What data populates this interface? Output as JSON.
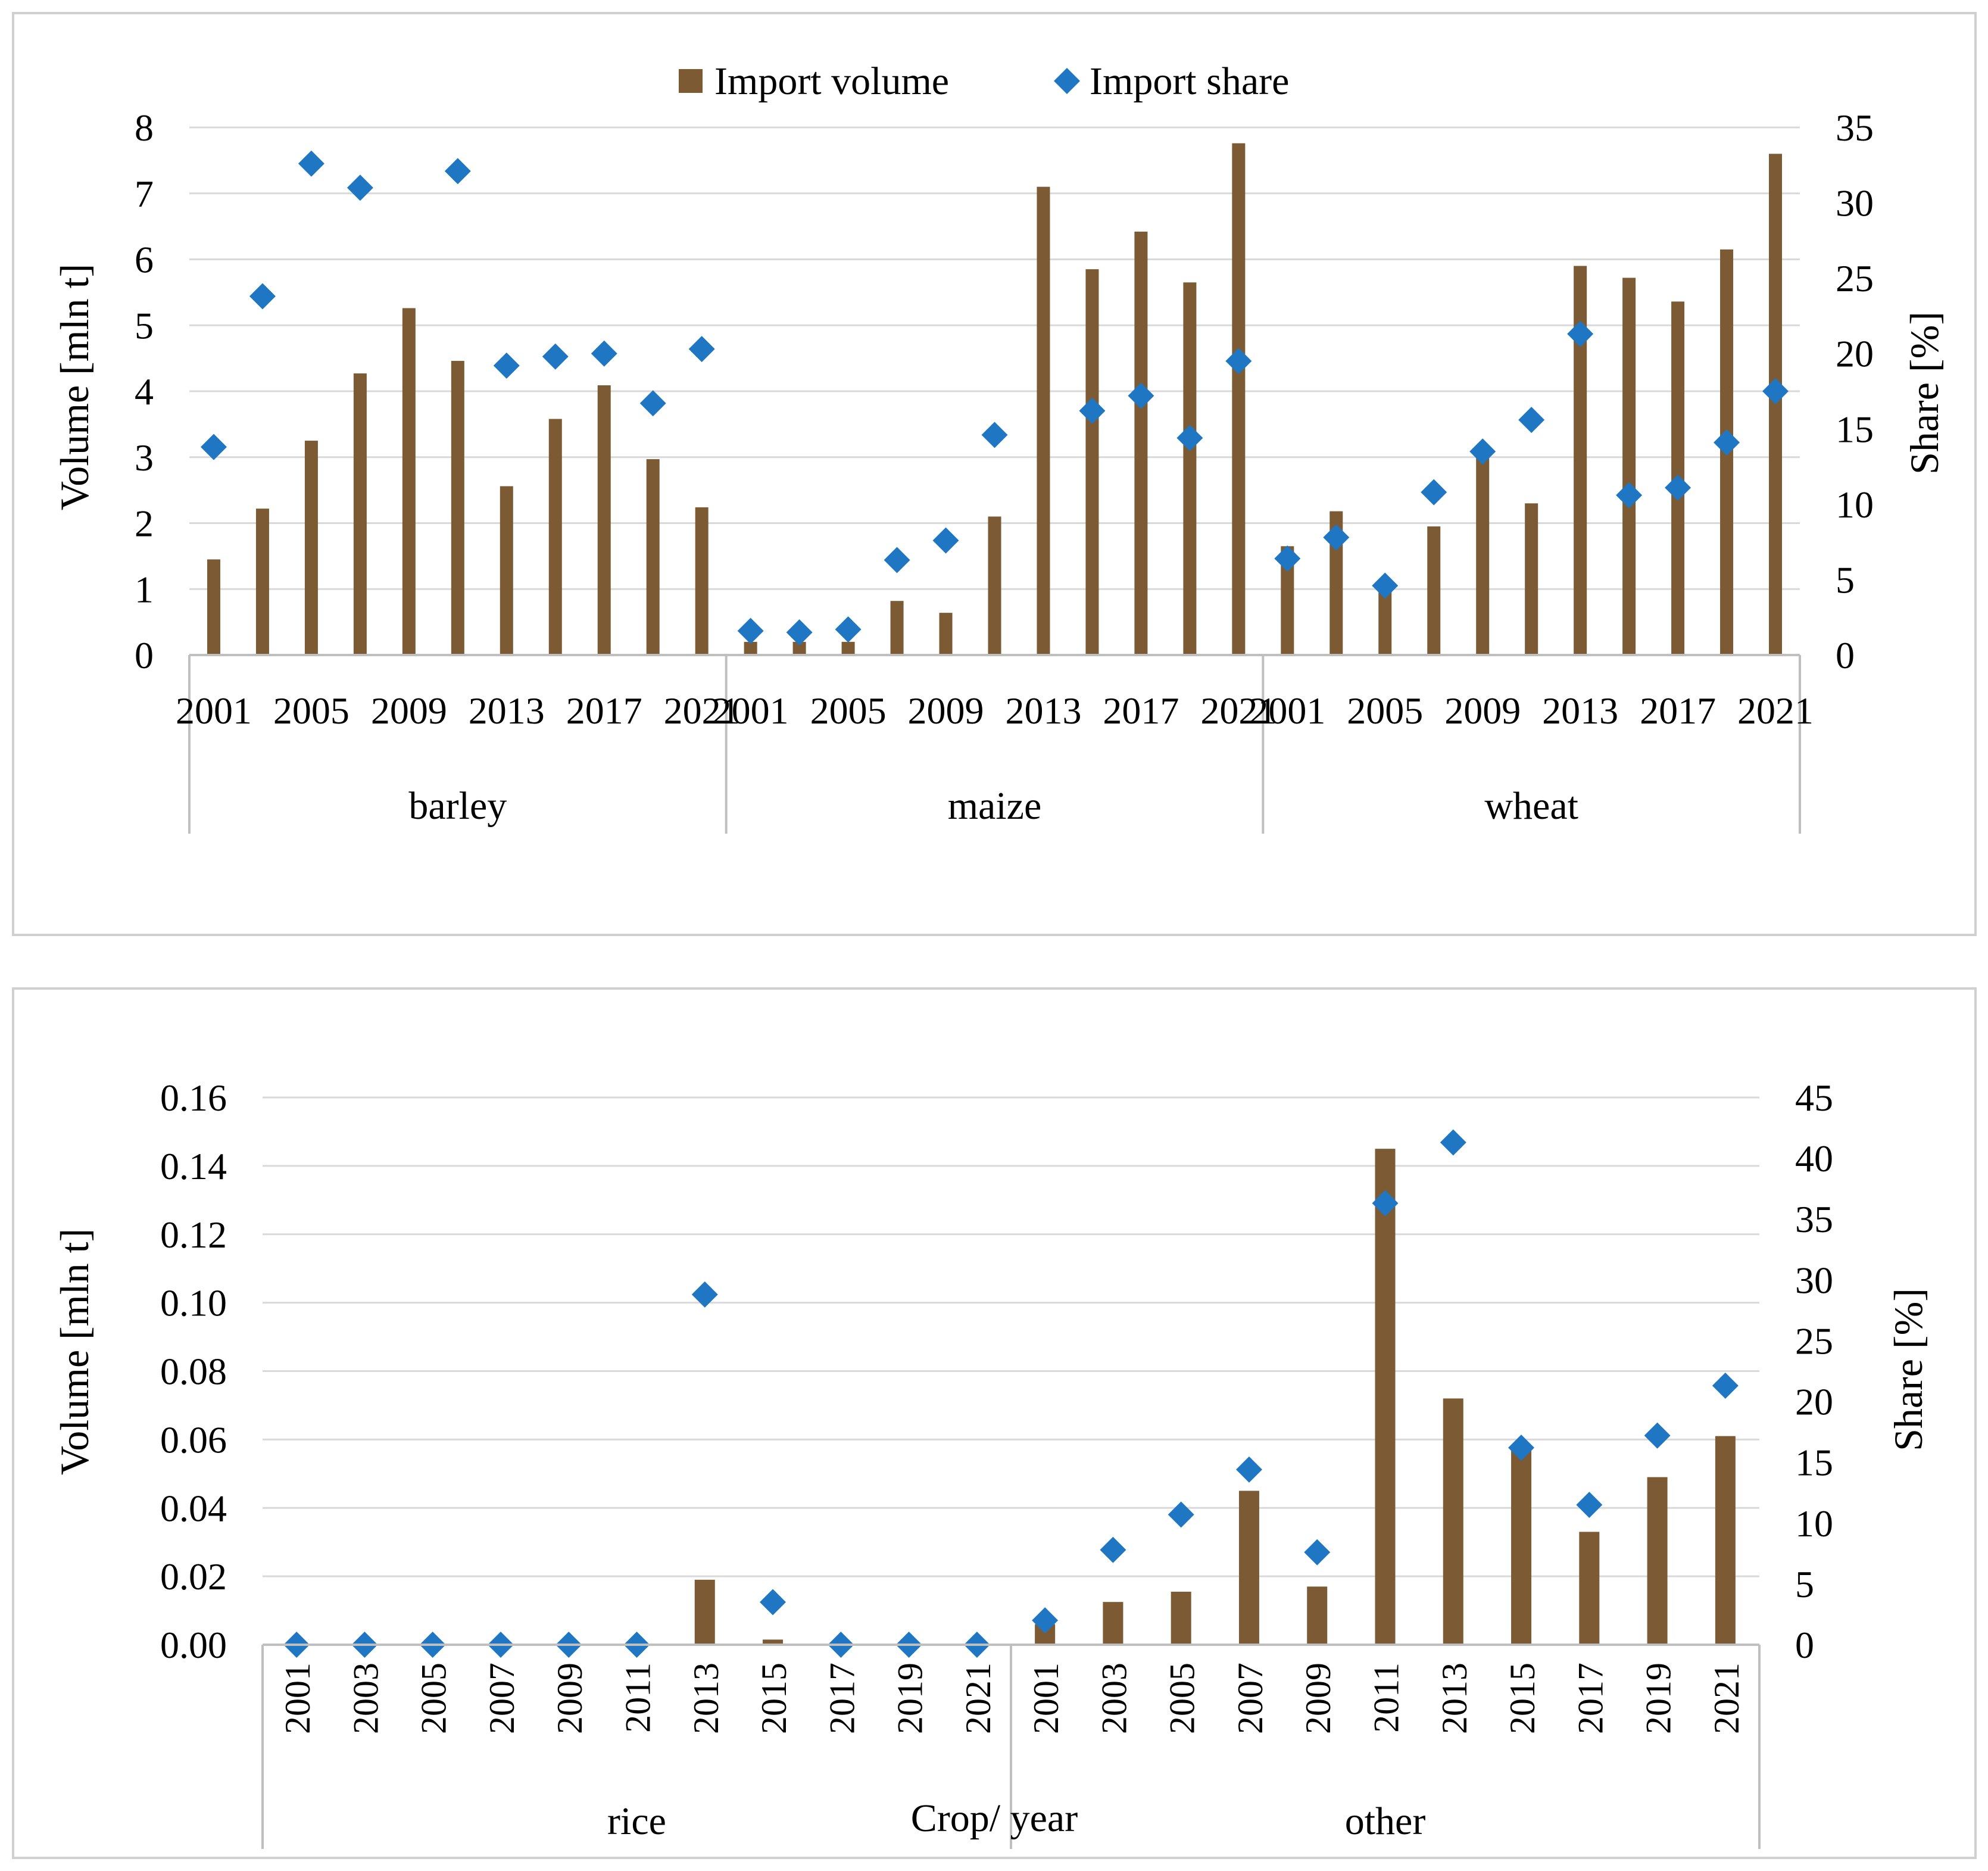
{
  "colors": {
    "volume": "#7b5a34",
    "share": "#1f77c4",
    "grid": "#d9d9d9",
    "axis": "#bfbfbf",
    "frame": "#d0d0d0"
  },
  "chart_data": [
    {
      "type": "bar",
      "legend": {
        "volume_label": "Import volume",
        "share_label": "Import share",
        "position": "top-center"
      },
      "ylabel": "Volume [mln t]",
      "ylabel_right": "Share [%]",
      "ylim": [
        0,
        8
      ],
      "ylim_right": [
        0,
        35
      ],
      "yticks": [
        "0",
        "1",
        "2",
        "3",
        "4",
        "5",
        "6",
        "7",
        "8"
      ],
      "yticks_right": [
        "0",
        "5",
        "10",
        "15",
        "20",
        "25",
        "30",
        "35"
      ],
      "groups": [
        {
          "name": "barley",
          "years": [
            "2001",
            "2003",
            "2005",
            "2007",
            "2009",
            "2011",
            "2013",
            "2015",
            "2017",
            "2019",
            "2021"
          ],
          "tick_labels": [
            "2001",
            "2005",
            "2009",
            "2013",
            "2017",
            "2021"
          ],
          "volume": [
            1.45,
            2.22,
            3.25,
            4.27,
            5.26,
            4.46,
            2.56,
            3.58,
            4.09,
            2.97,
            2.24
          ],
          "share": [
            13.8,
            23.8,
            32.6,
            31.0,
            null,
            32.1,
            19.2,
            19.8,
            20.0,
            16.7,
            20.3
          ]
        },
        {
          "name": "maize",
          "years": [
            "2001",
            "2003",
            "2005",
            "2007",
            "2009",
            "2011",
            "2013",
            "2015",
            "2017",
            "2019",
            "2021"
          ],
          "tick_labels": [
            "2001",
            "2005",
            "2009",
            "2013",
            "2017",
            "2021"
          ],
          "volume": [
            0.2,
            0.2,
            0.2,
            0.82,
            0.64,
            2.1,
            7.1,
            5.85,
            6.42,
            5.65,
            7.76
          ],
          "share": [
            1.6,
            1.5,
            1.7,
            6.3,
            7.6,
            14.6,
            null,
            16.2,
            17.2,
            14.4,
            19.5
          ]
        },
        {
          "name": "wheat",
          "years": [
            "2001",
            "2003",
            "2005",
            "2007",
            "2009",
            "2011",
            "2013",
            "2015",
            "2017",
            "2019",
            "2021"
          ],
          "tick_labels": [
            "2001",
            "2005",
            "2009",
            "2013",
            "2017",
            "2021"
          ],
          "volume": [
            1.65,
            2.18,
            1.0,
            1.95,
            3.0,
            2.3,
            5.9,
            5.72,
            5.36,
            6.15,
            7.6
          ],
          "share": [
            6.4,
            7.8,
            4.6,
            10.8,
            13.5,
            15.6,
            21.3,
            10.6,
            11.1,
            14.1,
            17.5
          ]
        }
      ]
    },
    {
      "type": "bar",
      "xlabel": "Crop/ year",
      "ylabel": "Volume [mln t]",
      "ylabel_right": "Share [%]",
      "ylim": [
        0,
        0.16
      ],
      "ylim_right": [
        0,
        45
      ],
      "yticks": [
        "0.00",
        "0.02",
        "0.04",
        "0.06",
        "0.08",
        "0.10",
        "0.12",
        "0.14",
        "0.16"
      ],
      "yticks_right": [
        "0",
        "5",
        "10",
        "15",
        "20",
        "25",
        "30",
        "35",
        "40",
        "45"
      ],
      "groups": [
        {
          "name": "rice",
          "years": [
            "2001",
            "2003",
            "2005",
            "2007",
            "2009",
            "2011",
            "2013",
            "2015",
            "2017",
            "2019",
            "2021"
          ],
          "volume": [
            0,
            0,
            0,
            0,
            0,
            0,
            0.019,
            0.0015,
            0,
            0,
            0
          ],
          "share": [
            0,
            0,
            0,
            0,
            0,
            0,
            28.8,
            3.5,
            0,
            0,
            0
          ]
        },
        {
          "name": "other",
          "years": [
            "2001",
            "2003",
            "2005",
            "2007",
            "2009",
            "2011",
            "2013",
            "2015",
            "2017",
            "2019",
            "2021"
          ],
          "volume": [
            0.006,
            0.0125,
            0.0155,
            0.045,
            0.017,
            0.145,
            0.072,
            0.058,
            0.033,
            0.049,
            0.061
          ],
          "share": [
            2.0,
            7.8,
            10.7,
            14.4,
            7.6,
            36.3,
            41.3,
            16.2,
            11.5,
            17.2,
            21.3
          ]
        }
      ]
    }
  ]
}
